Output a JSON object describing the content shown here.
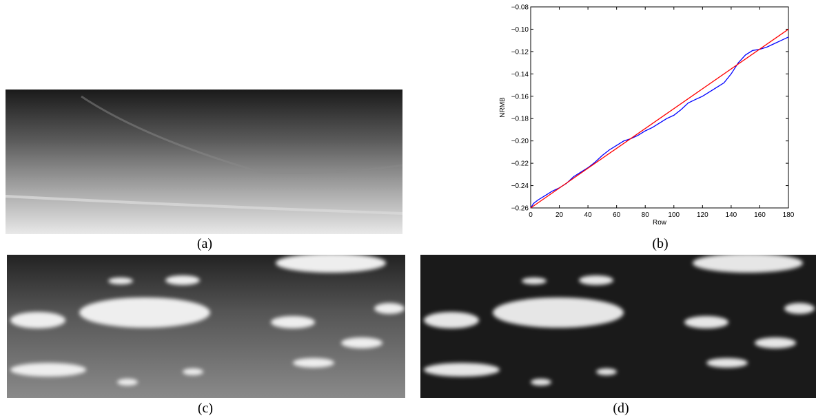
{
  "figure": {
    "captions": {
      "a": "(a)",
      "b": "(b)",
      "c": "(c)",
      "d": "(d)"
    },
    "panels": {
      "a": {
        "description_icon": "sky-gradient-image"
      },
      "c": {
        "description_icon": "cloud-image-gray"
      },
      "d": {
        "description_icon": "cloud-image-dark"
      }
    }
  },
  "chart_data": {
    "type": "line",
    "title": "",
    "xlabel": "Row",
    "ylabel": "NRMB",
    "xlim": [
      0,
      180
    ],
    "ylim": [
      -0.26,
      -0.08
    ],
    "xticks": [
      0,
      20,
      40,
      60,
      80,
      100,
      120,
      140,
      160,
      180
    ],
    "yticks": [
      -0.26,
      -0.24,
      -0.22,
      -0.2,
      -0.18,
      -0.16,
      -0.14,
      -0.12,
      -0.1,
      -0.08
    ],
    "ytick_labels": [
      "−0.26",
      "−0.24",
      "−0.22",
      "−0.20",
      "−0.18",
      "−0.16",
      "−0.14",
      "−0.12",
      "−0.10",
      "−0.08"
    ],
    "series": [
      {
        "color": "#0000ff",
        "x": [
          0,
          2,
          5,
          10,
          15,
          20,
          25,
          30,
          35,
          40,
          45,
          50,
          55,
          60,
          65,
          70,
          75,
          80,
          85,
          90,
          95,
          100,
          105,
          110,
          115,
          120,
          125,
          130,
          135,
          140,
          145,
          150,
          155,
          160,
          165,
          170,
          175,
          180
        ],
        "y": [
          -0.26,
          -0.256,
          -0.253,
          -0.249,
          -0.245,
          -0.242,
          -0.238,
          -0.232,
          -0.228,
          -0.224,
          -0.219,
          -0.213,
          -0.208,
          -0.204,
          -0.2,
          -0.198,
          -0.195,
          -0.191,
          -0.188,
          -0.184,
          -0.18,
          -0.177,
          -0.172,
          -0.166,
          -0.163,
          -0.16,
          -0.156,
          -0.152,
          -0.148,
          -0.14,
          -0.13,
          -0.123,
          -0.119,
          -0.118,
          -0.116,
          -0.113,
          -0.11,
          -0.107
        ]
      },
      {
        "color": "#ff0000",
        "x": [
          0,
          180
        ],
        "y": [
          -0.26,
          -0.1
        ]
      }
    ],
    "grid": false,
    "legend": "none"
  }
}
